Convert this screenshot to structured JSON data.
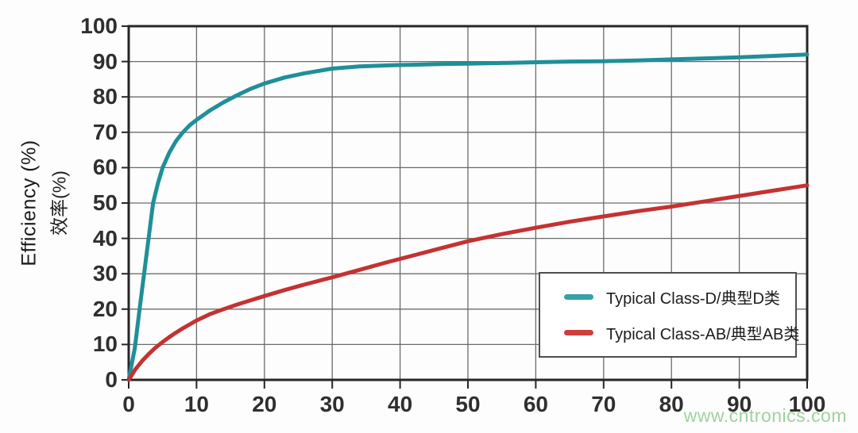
{
  "watermark": {
    "text": "www.cntronics.com",
    "color": "#8fcb90"
  },
  "chart_data": {
    "type": "line",
    "title": "",
    "xlabel": "",
    "ylabel": "Efficiency (%)",
    "ylabel_secondary": "效率(%)",
    "xlim": [
      0,
      100
    ],
    "ylim": [
      0,
      100
    ],
    "x_ticks": [
      0,
      10,
      20,
      30,
      40,
      50,
      60,
      70,
      80,
      90,
      100
    ],
    "y_ticks": [
      0,
      10,
      20,
      30,
      40,
      50,
      60,
      70,
      80,
      90,
      100
    ],
    "grid": true,
    "grid_color": "#6b6b6b",
    "axis_color": "#262626",
    "legend_position": "inside-bottom-right",
    "series": [
      {
        "name": "Typical Class-D/典型D类",
        "color": "#1f8f99",
        "swatch_color": "#36a0aa",
        "points": [
          [
            0,
            0
          ],
          [
            0.9,
            9
          ],
          [
            1.6,
            20
          ],
          [
            2.4,
            32
          ],
          [
            3,
            41
          ],
          [
            3.6,
            50
          ],
          [
            4.3,
            55.5
          ],
          [
            5,
            60
          ],
          [
            6,
            64.3
          ],
          [
            7,
            67.6
          ],
          [
            8,
            70
          ],
          [
            9,
            72
          ],
          [
            10,
            73.5
          ],
          [
            12,
            76.2
          ],
          [
            14,
            78.5
          ],
          [
            16,
            80.5
          ],
          [
            18,
            82.3
          ],
          [
            20,
            83.8
          ],
          [
            23,
            85.5
          ],
          [
            26,
            86.7
          ],
          [
            30,
            88
          ],
          [
            34,
            88.6
          ],
          [
            38,
            88.9
          ],
          [
            42,
            89.1
          ],
          [
            46,
            89.3
          ],
          [
            50,
            89.4
          ],
          [
            55,
            89.6
          ],
          [
            60,
            89.8
          ],
          [
            65,
            90
          ],
          [
            70,
            90.1
          ],
          [
            75,
            90.3
          ],
          [
            80,
            90.6
          ],
          [
            85,
            90.9
          ],
          [
            90,
            91.2
          ],
          [
            95,
            91.6
          ],
          [
            100,
            92
          ]
        ]
      },
      {
        "name": "Typical Class-AB/典型AB类",
        "color": "#c43231",
        "swatch_color": "#cd3e3c",
        "points": [
          [
            0,
            0
          ],
          [
            0.5,
            1.5
          ],
          [
            1,
            3
          ],
          [
            2,
            5.4
          ],
          [
            3,
            7.4
          ],
          [
            4,
            9.2
          ],
          [
            5,
            10.7
          ],
          [
            6,
            12.1
          ],
          [
            7,
            13.4
          ],
          [
            8,
            14.6
          ],
          [
            9,
            15.7
          ],
          [
            10,
            16.8
          ],
          [
            12,
            18.6
          ],
          [
            14,
            20
          ],
          [
            16,
            21.3
          ],
          [
            18,
            22.5
          ],
          [
            20,
            23.7
          ],
          [
            23,
            25.4
          ],
          [
            26,
            27
          ],
          [
            30,
            29
          ],
          [
            34,
            31.1
          ],
          [
            38,
            33.2
          ],
          [
            42,
            35.2
          ],
          [
            46,
            37.2
          ],
          [
            50,
            39.2
          ],
          [
            55,
            41.2
          ],
          [
            60,
            43
          ],
          [
            65,
            44.7
          ],
          [
            70,
            46.2
          ],
          [
            75,
            47.7
          ],
          [
            80,
            49
          ],
          [
            85,
            50.5
          ],
          [
            90,
            52
          ],
          [
            95,
            53.5
          ],
          [
            100,
            55
          ]
        ]
      }
    ]
  }
}
